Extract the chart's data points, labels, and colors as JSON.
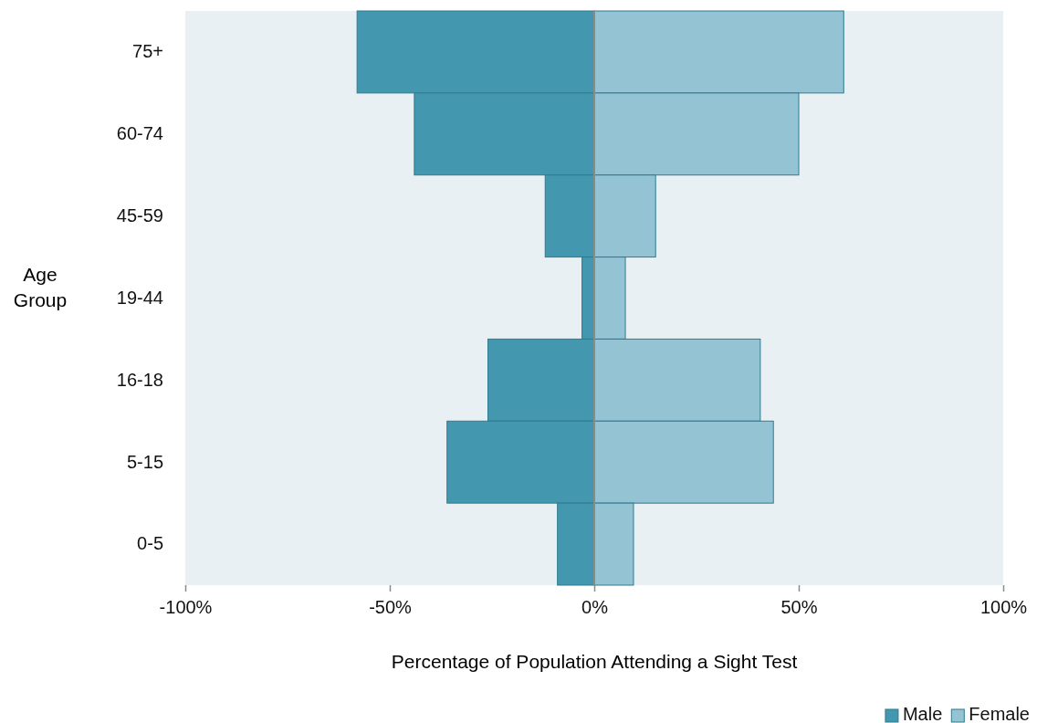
{
  "chart_data": {
    "type": "bar",
    "orientation": "horizontal",
    "stacked": true,
    "xlabel": "Percentage of Population Attending a Sight Test",
    "ylabel": "Age Group",
    "categories": [
      "75+",
      "60-74",
      "45-59",
      "19-44",
      "16-18",
      "5-15",
      "0-5"
    ],
    "series": [
      {
        "name": "Male",
        "color": "#4398b0",
        "values": [
          -58,
          -44,
          -12,
          -3,
          -26,
          -36,
          -9
        ]
      },
      {
        "name": "Female",
        "color": "#94c3d4",
        "values": [
          61,
          50,
          15,
          7.6,
          40.6,
          43.8,
          9.6
        ]
      }
    ],
    "xlim": [
      -100,
      100
    ],
    "xticks": [
      {
        "value": -100,
        "label": "-100%"
      },
      {
        "value": -50,
        "label": "-50%"
      },
      {
        "value": 0,
        "label": "0%"
      },
      {
        "value": 50,
        "label": "50%"
      },
      {
        "value": 100,
        "label": "100%"
      }
    ],
    "ref_lines": [
      {
        "axis": "x",
        "value": 0,
        "color": "#8a8a8a"
      }
    ],
    "legend": "bottom right"
  }
}
